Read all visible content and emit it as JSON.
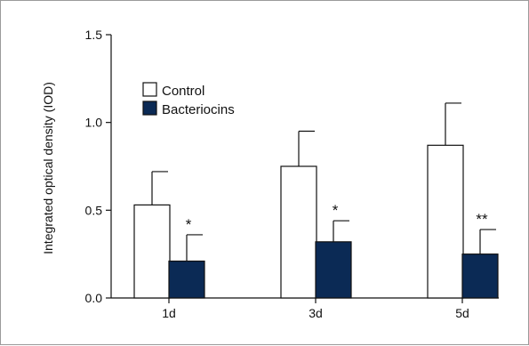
{
  "chart_data": {
    "type": "bar",
    "title": "",
    "xlabel": "",
    "ylabel": "Integrated optical density (IOD)",
    "ylim": [
      0,
      1.5
    ],
    "yticks": [
      "0.0",
      "0.5",
      "1.0",
      "1.5"
    ],
    "categories": [
      "1d",
      "3d",
      "5d"
    ],
    "series": [
      {
        "name": "Control",
        "color": "#ffffff",
        "values": [
          0.53,
          0.75,
          0.87
        ],
        "errors": [
          0.19,
          0.2,
          0.24
        ],
        "annotations": [
          "",
          "",
          ""
        ]
      },
      {
        "name": "Bacteriocins",
        "color": "#0b2a55",
        "values": [
          0.21,
          0.32,
          0.25
        ],
        "errors": [
          0.15,
          0.12,
          0.14
        ],
        "annotations": [
          "*",
          "*",
          "**"
        ]
      }
    ],
    "legend": "top-left",
    "grid": false
  }
}
